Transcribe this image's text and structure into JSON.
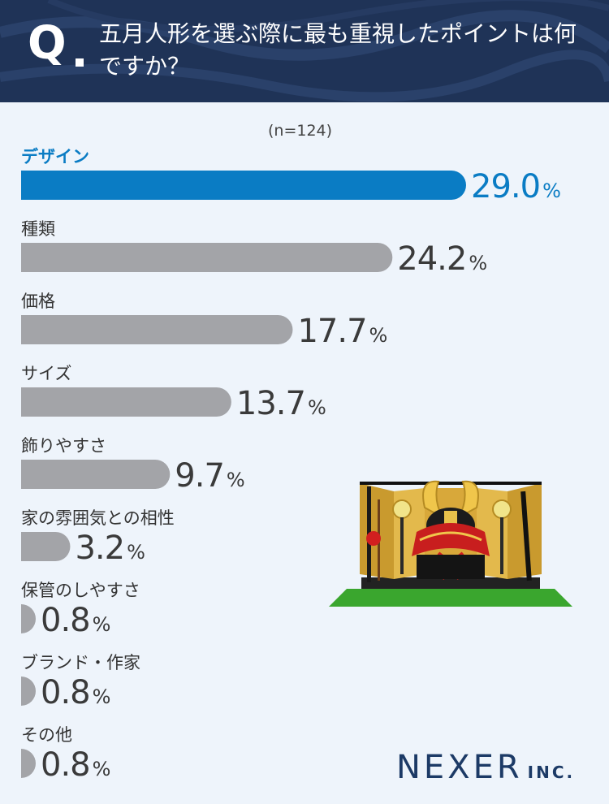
{
  "header": {
    "q": "Q",
    "question": "五月人形を選ぶ際に最も重視したポイントは何ですか？"
  },
  "sample": "(n=124)",
  "chart_data": {
    "type": "bar",
    "orientation": "horizontal",
    "unit": "%",
    "categories": [
      "デザイン",
      "種類",
      "価格",
      "サイズ",
      "飾りやすさ",
      "家の雰囲気との相性",
      "保管のしやすさ",
      "ブランド・作家",
      "その他"
    ],
    "values": [
      29.0,
      24.2,
      17.7,
      13.7,
      9.7,
      3.2,
      0.8,
      0.8,
      0.8
    ],
    "value_labels": [
      "29.0",
      "24.2",
      "17.7",
      "13.7",
      "9.7",
      "3.2",
      "0.8",
      "0.8",
      "0.8"
    ],
    "highlight_index": 0,
    "colors": {
      "highlight": "#0a7cc4",
      "default": "#a3a4a8",
      "value_text": "#3a3a3a"
    }
  },
  "logo": {
    "main": "NEXER",
    "sub": "INC."
  },
  "illustration": {
    "name": "kabuto-helmet-display"
  }
}
